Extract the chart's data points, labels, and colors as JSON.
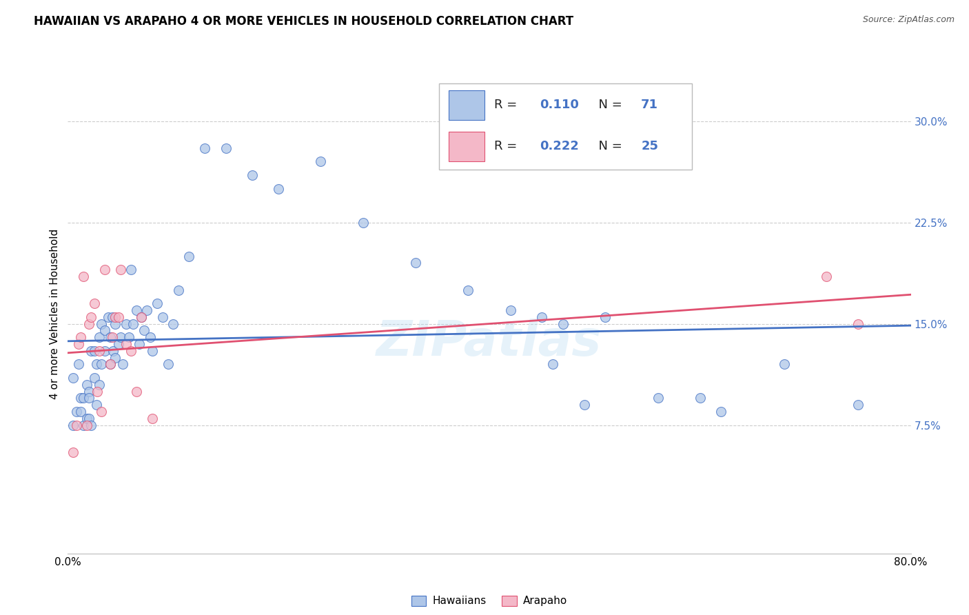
{
  "title": "HAWAIIAN VS ARAPAHO 4 OR MORE VEHICLES IN HOUSEHOLD CORRELATION CHART",
  "source": "Source: ZipAtlas.com",
  "ylabel": "4 or more Vehicles in Household",
  "watermark": "ZIPatlas",
  "xlim": [
    0.0,
    0.8
  ],
  "ylim": [
    -0.02,
    0.335
  ],
  "yticks": [
    0.075,
    0.15,
    0.225,
    0.3
  ],
  "yticklabels": [
    "7.5%",
    "15.0%",
    "22.5%",
    "30.0%"
  ],
  "hawaiians_R": "0.110",
  "hawaiians_N": "71",
  "arapaho_R": "0.222",
  "arapaho_N": "25",
  "hawaiians_color": "#aec6e8",
  "arapaho_color": "#f4b8c8",
  "line_hawaiians_color": "#4472c4",
  "line_arapaho_color": "#e05070",
  "legend_label_hawaiians": "Hawaiians",
  "legend_label_arapaho": "Arapaho",
  "background_color": "#ffffff",
  "grid_color": "#cccccc",
  "title_fontsize": 12,
  "axis_fontsize": 11,
  "legend_fontsize": 13,
  "marker_size": 100,
  "marker_alpha": 0.75,
  "hawaiians_x": [
    0.005,
    0.005,
    0.008,
    0.01,
    0.012,
    0.012,
    0.015,
    0.015,
    0.018,
    0.018,
    0.02,
    0.02,
    0.02,
    0.022,
    0.022,
    0.025,
    0.025,
    0.027,
    0.027,
    0.03,
    0.03,
    0.032,
    0.032,
    0.035,
    0.035,
    0.038,
    0.04,
    0.04,
    0.042,
    0.043,
    0.045,
    0.045,
    0.048,
    0.05,
    0.052,
    0.055,
    0.058,
    0.06,
    0.062,
    0.065,
    0.068,
    0.07,
    0.072,
    0.075,
    0.078,
    0.08,
    0.085,
    0.09,
    0.095,
    0.1,
    0.105,
    0.115,
    0.13,
    0.15,
    0.175,
    0.2,
    0.24,
    0.28,
    0.33,
    0.38,
    0.42,
    0.45,
    0.46,
    0.47,
    0.49,
    0.51,
    0.56,
    0.6,
    0.62,
    0.68,
    0.75
  ],
  "hawaiians_y": [
    0.11,
    0.075,
    0.085,
    0.12,
    0.085,
    0.095,
    0.095,
    0.075,
    0.105,
    0.08,
    0.1,
    0.095,
    0.08,
    0.13,
    0.075,
    0.13,
    0.11,
    0.12,
    0.09,
    0.14,
    0.105,
    0.15,
    0.12,
    0.145,
    0.13,
    0.155,
    0.14,
    0.12,
    0.155,
    0.13,
    0.15,
    0.125,
    0.135,
    0.14,
    0.12,
    0.15,
    0.14,
    0.19,
    0.15,
    0.16,
    0.135,
    0.155,
    0.145,
    0.16,
    0.14,
    0.13,
    0.165,
    0.155,
    0.12,
    0.15,
    0.175,
    0.2,
    0.28,
    0.28,
    0.26,
    0.25,
    0.27,
    0.225,
    0.195,
    0.175,
    0.16,
    0.155,
    0.12,
    0.15,
    0.09,
    0.155,
    0.095,
    0.095,
    0.085,
    0.12,
    0.09
  ],
  "arapaho_x": [
    0.005,
    0.008,
    0.01,
    0.012,
    0.015,
    0.018,
    0.02,
    0.022,
    0.025,
    0.028,
    0.03,
    0.032,
    0.035,
    0.04,
    0.042,
    0.045,
    0.048,
    0.05,
    0.055,
    0.06,
    0.065,
    0.07,
    0.08,
    0.72,
    0.75
  ],
  "arapaho_y": [
    0.055,
    0.075,
    0.135,
    0.14,
    0.185,
    0.075,
    0.15,
    0.155,
    0.165,
    0.1,
    0.13,
    0.085,
    0.19,
    0.12,
    0.14,
    0.155,
    0.155,
    0.19,
    0.135,
    0.13,
    0.1,
    0.155,
    0.08,
    0.185,
    0.15
  ]
}
